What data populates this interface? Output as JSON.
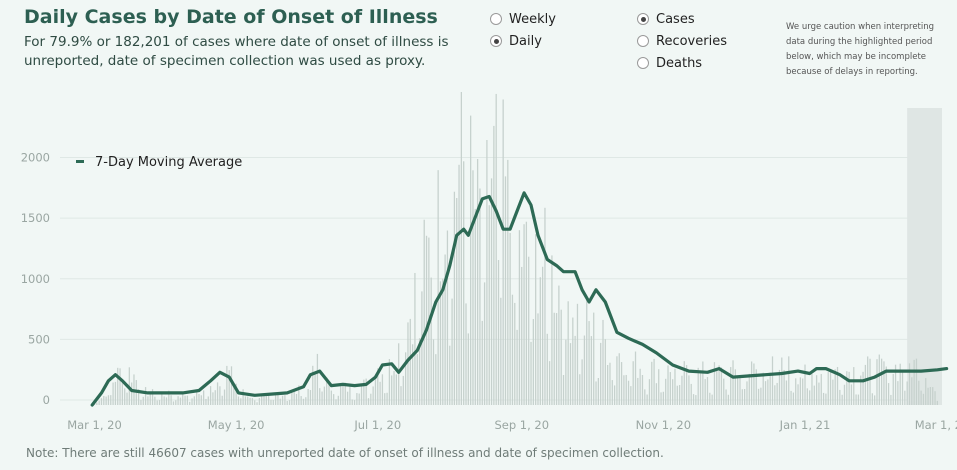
{
  "header": {
    "title": "Daily Cases by Date of Onset of Illness",
    "subtitle": "For 79.9% or 182,201 of cases where date of onset of illness is unreported, date of specimen collection was used as proxy."
  },
  "controls": {
    "frequency": [
      {
        "label": "Weekly",
        "selected": false
      },
      {
        "label": "Daily",
        "selected": true
      }
    ],
    "metric": [
      {
        "label": "Cases",
        "selected": true
      },
      {
        "label": "Recoveries",
        "selected": false
      },
      {
        "label": "Deaths",
        "selected": false
      }
    ]
  },
  "caution_note": "We urge caution when interpreting data during the highlighted period below, which may be incomplete because of delays in reporting.",
  "footer_note": "Note: There are still 46607 cases with unreported date of onset of illness and date of specimen collection.",
  "colors": {
    "line": "#2d6a55",
    "bar": "#c6d1cd",
    "background": "#f1f7f5",
    "highlight": "#dfe6e4",
    "grid": "#dfe8e5"
  },
  "chart_data": {
    "type": "bar",
    "title": "Daily Cases by Date of Onset of Illness",
    "xlabel": "",
    "ylabel": "",
    "x_range": [
      "2020-02-16",
      "2021-03-01"
    ],
    "ylim": [
      0,
      2450
    ],
    "y_ticks": [
      0,
      500,
      1000,
      1500,
      2000
    ],
    "x_ticks": [
      "Mar 1, 20",
      "May 1, 20",
      "Jul 1, 20",
      "Sep 1, 20",
      "Nov 1, 20",
      "Jan 1, 21",
      "Mar 1, 21"
    ],
    "highlight_range": [
      "2021-02-14",
      "2021-03-01"
    ],
    "legend": {
      "label": "7-Day Moving Average",
      "position": "top-left"
    },
    "bar_anchors": [
      [
        "2020-02-29",
        0
      ],
      [
        "2020-03-05",
        80
      ],
      [
        "2020-03-10",
        250
      ],
      [
        "2020-03-14",
        330
      ],
      [
        "2020-03-18",
        260
      ],
      [
        "2020-03-22",
        120
      ],
      [
        "2020-03-28",
        95
      ],
      [
        "2020-04-05",
        90
      ],
      [
        "2020-04-15",
        100
      ],
      [
        "2020-04-22",
        170
      ],
      [
        "2020-04-26",
        330
      ],
      [
        "2020-05-01",
        200
      ],
      [
        "2020-05-05",
        80
      ],
      [
        "2020-05-15",
        75
      ],
      [
        "2020-05-25",
        110
      ],
      [
        "2020-06-01",
        150
      ],
      [
        "2020-06-05",
        350
      ],
      [
        "2020-06-10",
        160
      ],
      [
        "2020-06-20",
        150
      ],
      [
        "2020-06-27",
        190
      ],
      [
        "2020-07-01",
        330
      ],
      [
        "2020-07-05",
        290
      ],
      [
        "2020-07-10",
        500
      ],
      [
        "2020-07-14",
        750
      ],
      [
        "2020-07-18",
        1050
      ],
      [
        "2020-07-24",
        1400
      ],
      [
        "2020-07-30",
        1800
      ],
      [
        "2020-08-04",
        2050
      ],
      [
        "2020-08-08",
        2150
      ],
      [
        "2020-08-13",
        1650
      ],
      [
        "2020-08-17",
        1800
      ],
      [
        "2020-08-21",
        2250
      ],
      [
        "2020-08-24",
        1950
      ],
      [
        "2020-08-28",
        1500
      ],
      [
        "2020-09-01",
        1350
      ],
      [
        "2020-09-06",
        1300
      ],
      [
        "2020-09-12",
        1250
      ],
      [
        "2020-09-18",
        1000
      ],
      [
        "2020-09-25",
        800
      ],
      [
        "2020-10-02",
        650
      ],
      [
        "2020-10-10",
        500
      ],
      [
        "2020-10-20",
        360
      ],
      [
        "2020-11-01",
        300
      ],
      [
        "2020-11-15",
        280
      ],
      [
        "2020-12-01",
        290
      ],
      [
        "2020-12-15",
        320
      ],
      [
        "2020-12-25",
        330
      ],
      [
        "2021-01-01",
        260
      ],
      [
        "2021-01-15",
        300
      ],
      [
        "2021-02-01",
        320
      ],
      [
        "2021-02-10",
        330
      ],
      [
        "2021-02-20",
        360
      ],
      [
        "2021-02-27",
        80
      ]
    ],
    "series": [
      {
        "name": "7-Day Moving Average",
        "type": "line",
        "points": [
          [
            "2020-02-29",
            0
          ],
          [
            "2020-03-04",
            100
          ],
          [
            "2020-03-07",
            200
          ],
          [
            "2020-03-10",
            250
          ],
          [
            "2020-03-13",
            200
          ],
          [
            "2020-03-17",
            120
          ],
          [
            "2020-03-24",
            100
          ],
          [
            "2020-04-01",
            100
          ],
          [
            "2020-04-08",
            100
          ],
          [
            "2020-04-15",
            120
          ],
          [
            "2020-04-20",
            200
          ],
          [
            "2020-04-24",
            270
          ],
          [
            "2020-04-28",
            230
          ],
          [
            "2020-05-02",
            100
          ],
          [
            "2020-05-09",
            80
          ],
          [
            "2020-05-16",
            90
          ],
          [
            "2020-05-23",
            100
          ],
          [
            "2020-05-30",
            150
          ],
          [
            "2020-06-02",
            250
          ],
          [
            "2020-06-06",
            280
          ],
          [
            "2020-06-11",
            160
          ],
          [
            "2020-06-16",
            170
          ],
          [
            "2020-06-21",
            160
          ],
          [
            "2020-06-26",
            170
          ],
          [
            "2020-06-30",
            230
          ],
          [
            "2020-07-03",
            330
          ],
          [
            "2020-07-07",
            340
          ],
          [
            "2020-07-10",
            270
          ],
          [
            "2020-07-14",
            370
          ],
          [
            "2020-07-18",
            450
          ],
          [
            "2020-07-22",
            620
          ],
          [
            "2020-07-26",
            850
          ],
          [
            "2020-07-29",
            950
          ],
          [
            "2020-08-01",
            1150
          ],
          [
            "2020-08-04",
            1400
          ],
          [
            "2020-08-07",
            1450
          ],
          [
            "2020-08-09",
            1400
          ],
          [
            "2020-08-12",
            1550
          ],
          [
            "2020-08-15",
            1700
          ],
          [
            "2020-08-18",
            1720
          ],
          [
            "2020-08-21",
            1600
          ],
          [
            "2020-08-24",
            1450
          ],
          [
            "2020-08-27",
            1450
          ],
          [
            "2020-08-30",
            1600
          ],
          [
            "2020-09-02",
            1750
          ],
          [
            "2020-09-05",
            1650
          ],
          [
            "2020-09-08",
            1400
          ],
          [
            "2020-09-12",
            1200
          ],
          [
            "2020-09-16",
            1150
          ],
          [
            "2020-09-19",
            1100
          ],
          [
            "2020-09-24",
            1100
          ],
          [
            "2020-09-27",
            950
          ],
          [
            "2020-09-30",
            850
          ],
          [
            "2020-10-03",
            950
          ],
          [
            "2020-10-07",
            850
          ],
          [
            "2020-10-12",
            600
          ],
          [
            "2020-10-17",
            550
          ],
          [
            "2020-10-23",
            500
          ],
          [
            "2020-10-29",
            430
          ],
          [
            "2020-11-05",
            330
          ],
          [
            "2020-11-12",
            280
          ],
          [
            "2020-11-20",
            270
          ],
          [
            "2020-11-25",
            300
          ],
          [
            "2020-12-01",
            230
          ],
          [
            "2020-12-08",
            240
          ],
          [
            "2020-12-15",
            250
          ],
          [
            "2020-12-22",
            260
          ],
          [
            "2020-12-29",
            280
          ],
          [
            "2021-01-03",
            260
          ],
          [
            "2021-01-06",
            300
          ],
          [
            "2021-01-10",
            300
          ],
          [
            "2021-01-16",
            250
          ],
          [
            "2021-01-20",
            200
          ],
          [
            "2021-01-26",
            200
          ],
          [
            "2021-01-31",
            230
          ],
          [
            "2021-02-05",
            280
          ],
          [
            "2021-02-10",
            280
          ],
          [
            "2021-02-20",
            280
          ],
          [
            "2021-02-27",
            290
          ],
          [
            "2021-03-03",
            300
          ]
        ]
      }
    ]
  }
}
